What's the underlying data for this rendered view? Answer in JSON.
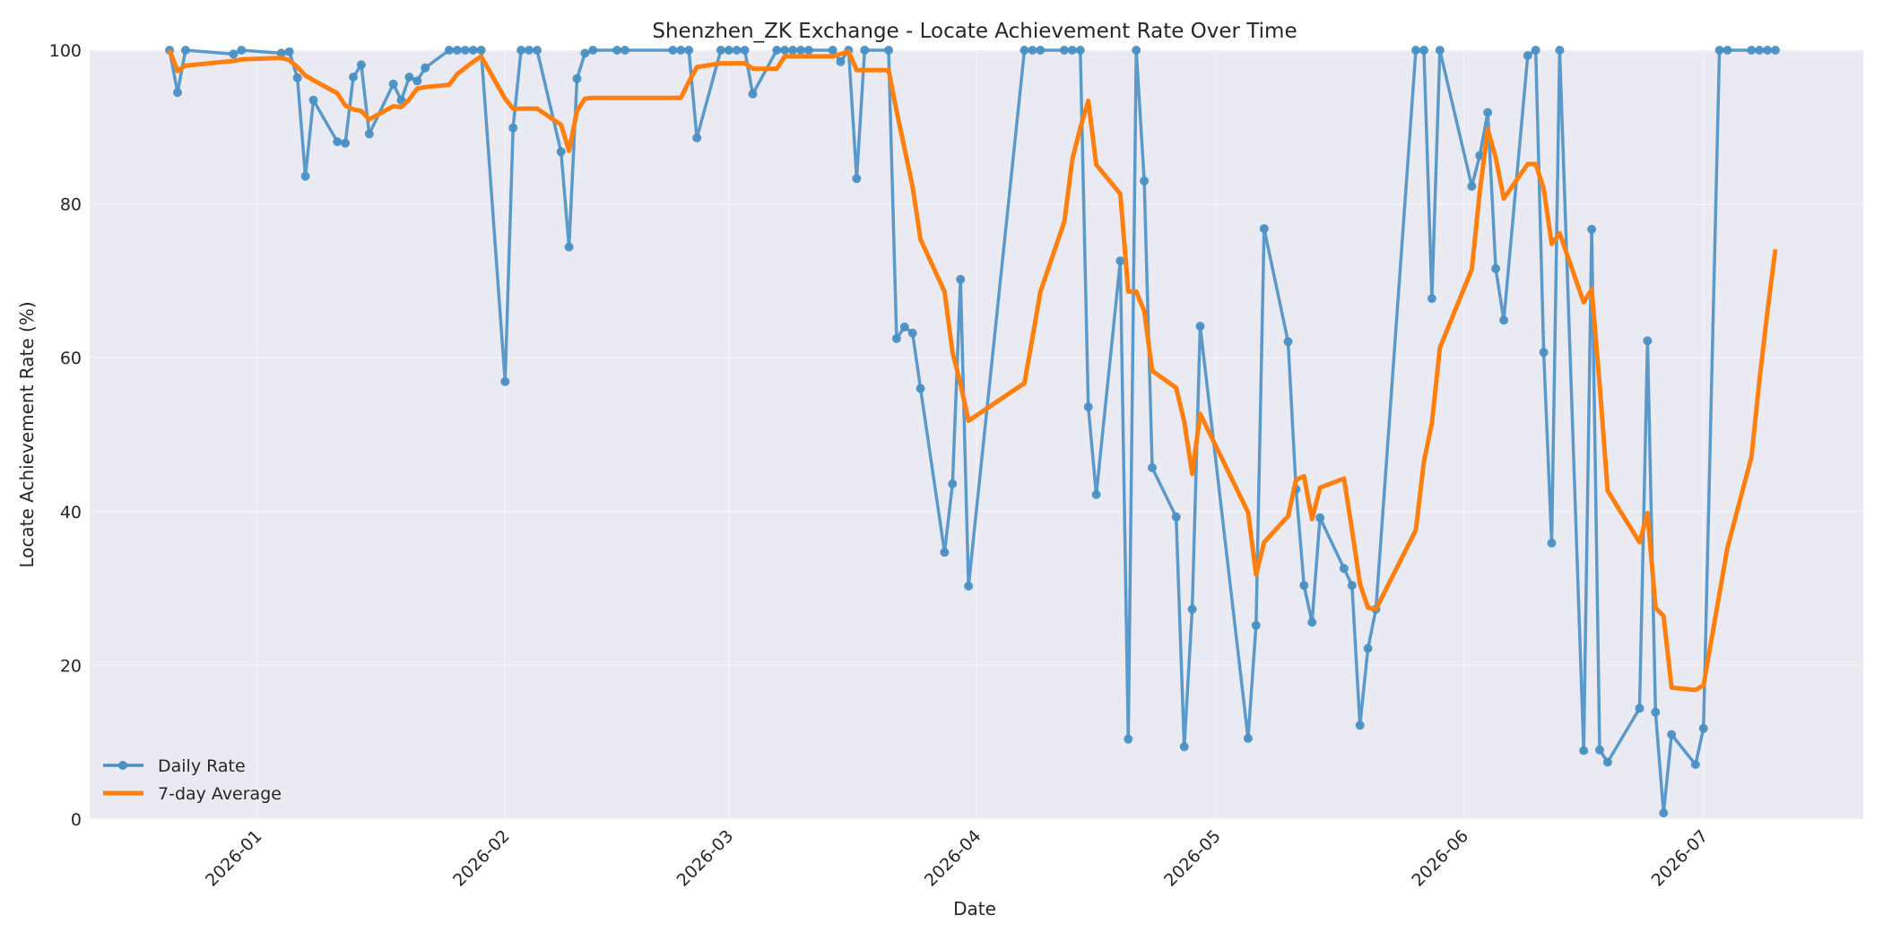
{
  "chart_data": {
    "type": "line",
    "title": "Shenzhen_ZK Exchange - Locate Achievement Rate Over Time",
    "xlabel": "Date",
    "ylabel": "Locate Achievement Rate (%)",
    "ylim": [
      0,
      100
    ],
    "xlim": [
      "2025-12-11",
      "2026-07-21"
    ],
    "x_ticks": [
      "2026-01-01",
      "2026-02-01",
      "2026-03-01",
      "2026-04-01",
      "2026-05-01",
      "2026-06-01",
      "2026-07-01"
    ],
    "x_tick_labels": [
      "2026-01",
      "2026-02",
      "2026-03",
      "2026-04",
      "2026-05",
      "2026-06",
      "2026-07"
    ],
    "y_ticks": [
      0,
      20,
      40,
      60,
      80,
      100
    ],
    "y_tick_labels": [
      "0",
      "20",
      "40",
      "60",
      "80",
      "100"
    ],
    "grid": true,
    "legend_position": "lower-left",
    "series": [
      {
        "name": "Daily Rate",
        "color": "#4a90c4",
        "marker": "circle",
        "points": [
          [
            "2025-12-21",
            100
          ],
          [
            "2025-12-22",
            94.5
          ],
          [
            "2025-12-23",
            100
          ],
          [
            "2025-12-29",
            99.5
          ],
          [
            "2025-12-30",
            100
          ],
          [
            "2026-01-04",
            99.6
          ],
          [
            "2026-01-05",
            99.8
          ],
          [
            "2026-01-06",
            96.4
          ],
          [
            "2026-01-07",
            83.6
          ],
          [
            "2026-01-08",
            93.5
          ],
          [
            "2026-01-11",
            88.1
          ],
          [
            "2026-01-12",
            87.9
          ],
          [
            "2026-01-13",
            96.5
          ],
          [
            "2026-01-14",
            98.1
          ],
          [
            "2026-01-15",
            89.1
          ],
          [
            "2026-01-18",
            95.6
          ],
          [
            "2026-01-19",
            93.5
          ],
          [
            "2026-01-20",
            96.5
          ],
          [
            "2026-01-21",
            96.0
          ],
          [
            "2026-01-22",
            97.7
          ],
          [
            "2026-01-25",
            100
          ],
          [
            "2026-01-26",
            100
          ],
          [
            "2026-01-27",
            100
          ],
          [
            "2026-01-28",
            100
          ],
          [
            "2026-01-29",
            100
          ],
          [
            "2026-02-01",
            56.9
          ],
          [
            "2026-02-02",
            89.9
          ],
          [
            "2026-02-03",
            100
          ],
          [
            "2026-02-04",
            100
          ],
          [
            "2026-02-05",
            100
          ],
          [
            "2026-02-08",
            86.8
          ],
          [
            "2026-02-09",
            74.4
          ],
          [
            "2026-02-10",
            96.3
          ],
          [
            "2026-02-11",
            99.6
          ],
          [
            "2026-02-12",
            100
          ],
          [
            "2026-02-15",
            100
          ],
          [
            "2026-02-16",
            100
          ],
          [
            "2026-02-22",
            100
          ],
          [
            "2026-02-23",
            100
          ],
          [
            "2026-02-24",
            100
          ],
          [
            "2026-02-25",
            88.6
          ],
          [
            "2026-02-28",
            100
          ],
          [
            "2026-03-01",
            100
          ],
          [
            "2026-03-02",
            100
          ],
          [
            "2026-03-03",
            100
          ],
          [
            "2026-03-04",
            94.3
          ],
          [
            "2026-03-07",
            100
          ],
          [
            "2026-03-08",
            100
          ],
          [
            "2026-03-09",
            100
          ],
          [
            "2026-03-10",
            100
          ],
          [
            "2026-03-11",
            100
          ],
          [
            "2026-03-14",
            100
          ],
          [
            "2026-03-15",
            98.5
          ],
          [
            "2026-03-16",
            100
          ],
          [
            "2026-03-17",
            83.3
          ],
          [
            "2026-03-18",
            100
          ],
          [
            "2026-03-21",
            100
          ],
          [
            "2026-03-22",
            62.5
          ],
          [
            "2026-03-23",
            64.0
          ],
          [
            "2026-03-24",
            63.2
          ],
          [
            "2026-03-25",
            56.0
          ],
          [
            "2026-03-28",
            34.7
          ],
          [
            "2026-03-29",
            43.6
          ],
          [
            "2026-03-30",
            70.2
          ],
          [
            "2026-03-31",
            30.3
          ],
          [
            "2026-04-07",
            100
          ],
          [
            "2026-04-08",
            100
          ],
          [
            "2026-04-09",
            100
          ],
          [
            "2026-04-12",
            100
          ],
          [
            "2026-04-13",
            100
          ],
          [
            "2026-04-14",
            100
          ],
          [
            "2026-04-15",
            53.6
          ],
          [
            "2026-04-16",
            42.2
          ],
          [
            "2026-04-19",
            72.6
          ],
          [
            "2026-04-20",
            10.4
          ],
          [
            "2026-04-21",
            100
          ],
          [
            "2026-04-22",
            83.0
          ],
          [
            "2026-04-23",
            45.7
          ],
          [
            "2026-04-26",
            39.3
          ],
          [
            "2026-04-27",
            9.4
          ],
          [
            "2026-04-28",
            27.3
          ],
          [
            "2026-04-29",
            64.1
          ],
          [
            "2026-05-05",
            10.5
          ],
          [
            "2026-05-06",
            25.2
          ],
          [
            "2026-05-07",
            76.8
          ],
          [
            "2026-05-10",
            62.1
          ],
          [
            "2026-05-11",
            42.9
          ],
          [
            "2026-05-12",
            30.4
          ],
          [
            "2026-05-13",
            25.6
          ],
          [
            "2026-05-14",
            39.2
          ],
          [
            "2026-05-17",
            32.6
          ],
          [
            "2026-05-18",
            30.4
          ],
          [
            "2026-05-19",
            12.2
          ],
          [
            "2026-05-20",
            22.2
          ],
          [
            "2026-05-21",
            27.3
          ],
          [
            "2026-05-26",
            100
          ],
          [
            "2026-05-27",
            100
          ],
          [
            "2026-05-28",
            67.7
          ],
          [
            "2026-05-29",
            100
          ],
          [
            "2026-06-02",
            82.3
          ],
          [
            "2026-06-03",
            86.3
          ],
          [
            "2026-06-04",
            91.9
          ],
          [
            "2026-06-05",
            71.6
          ],
          [
            "2026-06-06",
            64.9
          ],
          [
            "2026-06-09",
            99.3
          ],
          [
            "2026-06-10",
            100
          ],
          [
            "2026-06-11",
            60.7
          ],
          [
            "2026-06-12",
            35.9
          ],
          [
            "2026-06-13",
            100
          ],
          [
            "2026-06-16",
            8.9
          ],
          [
            "2026-06-17",
            76.7
          ],
          [
            "2026-06-18",
            9.0
          ],
          [
            "2026-06-19",
            7.4
          ],
          [
            "2026-06-23",
            14.4
          ],
          [
            "2026-06-24",
            62.2
          ],
          [
            "2026-06-25",
            13.9
          ],
          [
            "2026-06-26",
            0.8
          ],
          [
            "2026-06-27",
            11.0
          ],
          [
            "2026-06-30",
            7.1
          ],
          [
            "2026-07-01",
            11.8
          ],
          [
            "2026-07-03",
            100
          ],
          [
            "2026-07-04",
            100
          ],
          [
            "2026-07-07",
            100
          ],
          [
            "2026-07-08",
            100
          ],
          [
            "2026-07-09",
            100
          ],
          [
            "2026-07-10",
            100
          ]
        ]
      },
      {
        "name": "7-day Average",
        "color": "#ff7f0e",
        "marker": "none",
        "points": [
          [
            "2025-12-21",
            100
          ],
          [
            "2025-12-22",
            97.3
          ],
          [
            "2025-12-23",
            98.0
          ],
          [
            "2025-12-29",
            98.6
          ],
          [
            "2025-12-30",
            98.8
          ],
          [
            "2026-01-04",
            99.0
          ],
          [
            "2026-01-05",
            98.7
          ],
          [
            "2026-01-06",
            97.8
          ],
          [
            "2026-01-07",
            96.7
          ],
          [
            "2026-01-08",
            96.1
          ],
          [
            "2026-01-11",
            94.4
          ],
          [
            "2026-01-12",
            92.8
          ],
          [
            "2026-01-13",
            92.3
          ],
          [
            "2026-01-14",
            92.1
          ],
          [
            "2026-01-15",
            91.0
          ],
          [
            "2026-01-18",
            92.7
          ],
          [
            "2026-01-19",
            92.6
          ],
          [
            "2026-01-20",
            93.6
          ],
          [
            "2026-01-21",
            95.0
          ],
          [
            "2026-01-22",
            95.2
          ],
          [
            "2026-01-25",
            95.5
          ],
          [
            "2026-01-26",
            96.9
          ],
          [
            "2026-01-27",
            97.7
          ],
          [
            "2026-01-28",
            98.5
          ],
          [
            "2026-01-29",
            99.2
          ],
          [
            "2026-02-01",
            93.7
          ],
          [
            "2026-02-02",
            92.4
          ],
          [
            "2026-02-03",
            92.4
          ],
          [
            "2026-02-04",
            92.4
          ],
          [
            "2026-02-05",
            92.4
          ],
          [
            "2026-02-08",
            90.3
          ],
          [
            "2026-02-09",
            86.9
          ],
          [
            "2026-02-10",
            92.1
          ],
          [
            "2026-02-11",
            93.7
          ],
          [
            "2026-02-12",
            93.8
          ],
          [
            "2026-02-15",
            93.8
          ],
          [
            "2026-02-16",
            93.8
          ],
          [
            "2026-02-22",
            93.8
          ],
          [
            "2026-02-23",
            93.8
          ],
          [
            "2026-02-24",
            95.9
          ],
          [
            "2026-02-25",
            97.8
          ],
          [
            "2026-02-28",
            98.3
          ],
          [
            "2026-03-01",
            98.3
          ],
          [
            "2026-03-02",
            98.3
          ],
          [
            "2026-03-03",
            98.3
          ],
          [
            "2026-03-04",
            97.6
          ],
          [
            "2026-03-07",
            97.6
          ],
          [
            "2026-03-08",
            99.2
          ],
          [
            "2026-03-09",
            99.2
          ],
          [
            "2026-03-10",
            99.2
          ],
          [
            "2026-03-11",
            99.2
          ],
          [
            "2026-03-14",
            99.2
          ],
          [
            "2026-03-15",
            99.5
          ],
          [
            "2026-03-16",
            99.8
          ],
          [
            "2026-03-17",
            97.4
          ],
          [
            "2026-03-18",
            97.4
          ],
          [
            "2026-03-21",
            97.4
          ],
          [
            "2026-03-22",
            92.1
          ],
          [
            "2026-03-23",
            87.2
          ],
          [
            "2026-03-24",
            82.3
          ],
          [
            "2026-03-25",
            75.4
          ],
          [
            "2026-03-28",
            68.6
          ],
          [
            "2026-03-29",
            60.7
          ],
          [
            "2026-03-30",
            56.6
          ],
          [
            "2026-03-31",
            51.8
          ],
          [
            "2026-04-07",
            56.7
          ],
          [
            "2026-04-08",
            62.6
          ],
          [
            "2026-04-09",
            68.6
          ],
          [
            "2026-04-12",
            77.7
          ],
          [
            "2026-04-13",
            85.8
          ],
          [
            "2026-04-14",
            89.9
          ],
          [
            "2026-04-15",
            93.4
          ],
          [
            "2026-04-16",
            85.1
          ],
          [
            "2026-04-19",
            81.3
          ],
          [
            "2026-04-20",
            68.6
          ],
          [
            "2026-04-21",
            68.6
          ],
          [
            "2026-04-22",
            66.1
          ],
          [
            "2026-04-23",
            58.3
          ],
          [
            "2026-04-26",
            56.1
          ],
          [
            "2026-04-27",
            51.7
          ],
          [
            "2026-04-28",
            44.9
          ],
          [
            "2026-04-29",
            52.7
          ],
          [
            "2026-05-05",
            39.9
          ],
          [
            "2026-05-06",
            31.8
          ],
          [
            "2026-05-07",
            36.0
          ],
          [
            "2026-05-10",
            39.4
          ],
          [
            "2026-05-11",
            44.1
          ],
          [
            "2026-05-12",
            44.6
          ],
          [
            "2026-05-13",
            39.0
          ],
          [
            "2026-05-14",
            43.1
          ],
          [
            "2026-05-17",
            44.3
          ],
          [
            "2026-05-18",
            37.6
          ],
          [
            "2026-05-19",
            30.6
          ],
          [
            "2026-05-20",
            27.5
          ],
          [
            "2026-05-21",
            27.3
          ],
          [
            "2026-05-26",
            37.6
          ],
          [
            "2026-05-27",
            46.5
          ],
          [
            "2026-05-28",
            51.5
          ],
          [
            "2026-05-29",
            61.3
          ],
          [
            "2026-06-02",
            71.5
          ],
          [
            "2026-06-03",
            81.6
          ],
          [
            "2026-06-04",
            89.7
          ],
          [
            "2026-06-05",
            86.0
          ],
          [
            "2026-06-06",
            80.7
          ],
          [
            "2026-06-09",
            85.2
          ],
          [
            "2026-06-10",
            85.2
          ],
          [
            "2026-06-11",
            82.0
          ],
          [
            "2026-06-12",
            74.8
          ],
          [
            "2026-06-13",
            76.2
          ],
          [
            "2026-06-16",
            67.2
          ],
          [
            "2026-06-17",
            68.9
          ],
          [
            "2026-06-18",
            56.5
          ],
          [
            "2026-06-19",
            42.7
          ],
          [
            "2026-06-23",
            36.0
          ],
          [
            "2026-06-24",
            39.8
          ],
          [
            "2026-06-25",
            27.5
          ],
          [
            "2026-06-26",
            26.4
          ],
          [
            "2026-06-27",
            17.1
          ],
          [
            "2026-06-30",
            16.8
          ],
          [
            "2026-07-01",
            17.4
          ],
          [
            "2026-07-03",
            29.3
          ],
          [
            "2026-07-04",
            35.3
          ],
          [
            "2026-07-07",
            47.1
          ],
          [
            "2026-07-08",
            57.1
          ],
          [
            "2026-07-09",
            66.0
          ],
          [
            "2026-07-10",
            74.1
          ]
        ]
      }
    ]
  }
}
